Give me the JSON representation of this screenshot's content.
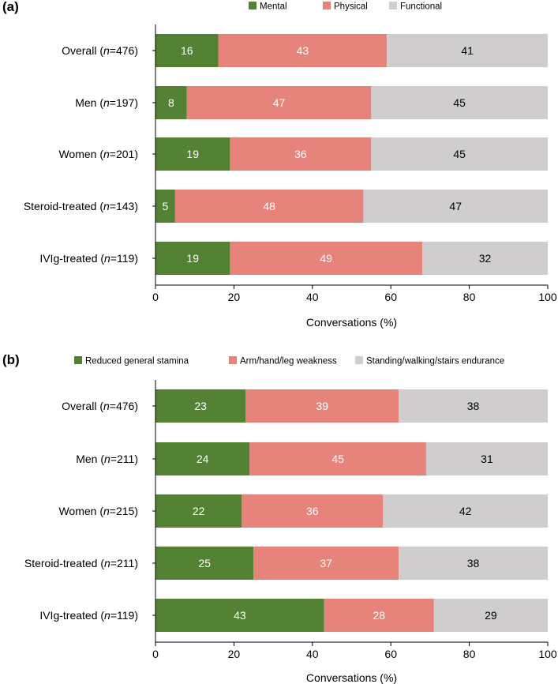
{
  "chart_data": [
    {
      "type": "bar",
      "orientation": "horizontal",
      "stacked": true,
      "panel_label": "(a)",
      "categories": [
        {
          "label": "Overall",
          "n": "476"
        },
        {
          "label": "Men",
          "n": "197"
        },
        {
          "label": "Women",
          "n": "201"
        },
        {
          "label": "Steroid-treated",
          "n": "143"
        },
        {
          "label": "IVIg-treated",
          "n": "119"
        }
      ],
      "series": [
        {
          "name": "Mental",
          "color": "#548235",
          "text_color": "#ffffff",
          "values": [
            16,
            8,
            19,
            5,
            19
          ]
        },
        {
          "name": "Physical",
          "color": "#e6837a",
          "text_color": "#ffffff",
          "values": [
            43,
            47,
            36,
            48,
            49
          ]
        },
        {
          "name": "Functional",
          "color": "#cfcdce",
          "text_color": "#000000",
          "values": [
            41,
            45,
            45,
            47,
            32
          ]
        }
      ],
      "xlabel": "Conversations (%)",
      "xlim": [
        0,
        100
      ],
      "xticks": [
        0,
        20,
        40,
        60,
        80,
        100
      ],
      "legend": "top-center"
    },
    {
      "type": "bar",
      "orientation": "horizontal",
      "stacked": true,
      "panel_label": "(b)",
      "categories": [
        {
          "label": "Overall",
          "n": "476"
        },
        {
          "label": "Men",
          "n": "211"
        },
        {
          "label": "Women",
          "n": "215"
        },
        {
          "label": "Steroid-treated",
          "n": "211"
        },
        {
          "label": "IVIg-treated",
          "n": "119"
        }
      ],
      "series": [
        {
          "name": "Reduced general stamina",
          "color": "#548235",
          "text_color": "#ffffff",
          "values": [
            23,
            24,
            22,
            25,
            43
          ]
        },
        {
          "name": "Arm/hand/leg weakness",
          "color": "#e6837a",
          "text_color": "#ffffff",
          "values": [
            39,
            45,
            36,
            37,
            28
          ]
        },
        {
          "name": "Standing/walking/stairs endurance",
          "color": "#cfcdce",
          "text_color": "#000000",
          "values": [
            38,
            31,
            42,
            38,
            29
          ]
        }
      ],
      "xlabel": "Conversations (%)",
      "xlim": [
        0,
        100
      ],
      "xticks": [
        0,
        20,
        40,
        60,
        80,
        100
      ],
      "legend": "top-center"
    }
  ]
}
